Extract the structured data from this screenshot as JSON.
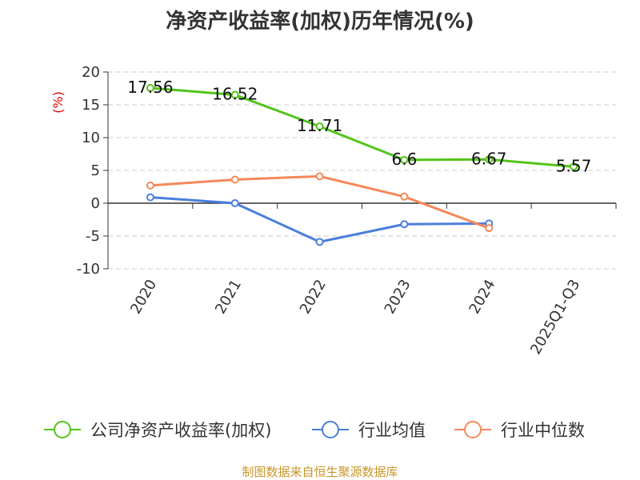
{
  "chart_data": {
    "type": "line",
    "title": "净资产收益率(加权)历年情况(%)",
    "ylabel": "(%)",
    "xlabel": "",
    "categories": [
      "2020",
      "2021",
      "2022",
      "2023",
      "2024",
      "2025Q1-Q3"
    ],
    "ylim": [
      -10,
      20
    ],
    "yticks": [
      20,
      15,
      10,
      5,
      0,
      -5,
      -10
    ],
    "grid": true,
    "legend_position": "bottom",
    "series": [
      {
        "name": "公司净资产收益率(加权)",
        "color": "#52c41a",
        "values": [
          17.56,
          16.52,
          11.71,
          6.6,
          6.67,
          5.57
        ],
        "labels": [
          "17.56",
          "16.52",
          "11.71",
          "6.6",
          "6.67",
          "5.57"
        ]
      },
      {
        "name": "行业均值",
        "color": "#4a7fdc",
        "values": [
          0.9,
          0.0,
          -5.9,
          -3.2,
          -3.1,
          null
        ]
      },
      {
        "name": "行业中位数",
        "color": "#f5895a",
        "values": [
          2.7,
          3.6,
          4.1,
          1.0,
          -3.8,
          null
        ]
      }
    ]
  },
  "source_note": "制图数据来自恒生聚源数据库",
  "colors": {
    "ylabel": "#e00000",
    "source": "#c8962a",
    "grid": "#cccccc",
    "axis": "#333333"
  }
}
